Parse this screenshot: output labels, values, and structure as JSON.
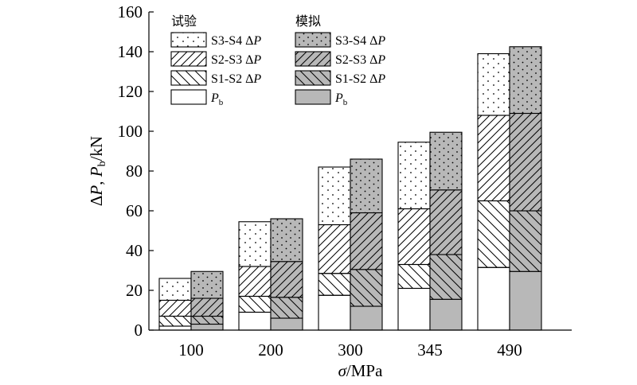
{
  "chart_data": {
    "type": "bar",
    "stacked": true,
    "title": "",
    "xlabel_symbol": "σ",
    "xlabel_unit": "/MPa",
    "ylabel_parts": {
      "delta": "Δ",
      "p": "P",
      "sep": ", ",
      "pb_p": "P",
      "pb_sub": "b",
      "unit": "/kN"
    },
    "categories": [
      "100",
      "200",
      "300",
      "345",
      "490"
    ],
    "ylim": [
      0,
      160
    ],
    "yticks": [
      "0",
      "20",
      "40",
      "60",
      "80",
      "100",
      "120",
      "140",
      "160"
    ],
    "grid": false,
    "legend": {
      "placement": "top-left",
      "group_titles": {
        "experiment": "试验",
        "simulation": "模拟"
      },
      "entries": [
        {
          "series": "S3-S4",
          "prefix": "S3-S4 Δ",
          "symbol": "P",
          "sub": ""
        },
        {
          "series": "S2-S3",
          "prefix": "S2-S3 Δ",
          "symbol": "P",
          "sub": ""
        },
        {
          "series": "S1-S2",
          "prefix": "S1-S2 Δ",
          "symbol": "P",
          "sub": ""
        },
        {
          "series": "Pb",
          "prefix": "",
          "symbol": "P",
          "sub": "b"
        }
      ]
    },
    "groups": [
      {
        "name": "试验",
        "fill": "#ffffff",
        "totals": {
          "Pb": [
            2,
            9,
            17.5,
            21,
            31.5
          ],
          "S1-S2": [
            7,
            17,
            28.5,
            33,
            65
          ],
          "S2-S3": [
            15,
            32,
            53,
            61,
            108
          ],
          "S3-S4": [
            26,
            54.5,
            82,
            94.5,
            139
          ]
        }
      },
      {
        "name": "模拟",
        "fill": "#b8b8b8",
        "totals": {
          "Pb": [
            3,
            6,
            12,
            15.5,
            29.5
          ],
          "S1-S2": [
            7,
            16.5,
            30.5,
            38,
            60
          ],
          "S2-S3": [
            16,
            34.5,
            59,
            70.5,
            109
          ],
          "S3-S4": [
            29.5,
            56,
            86,
            99.5,
            142.5
          ]
        }
      }
    ],
    "series_order": [
      "Pb",
      "S1-S2",
      "S2-S3",
      "S3-S4"
    ]
  }
}
